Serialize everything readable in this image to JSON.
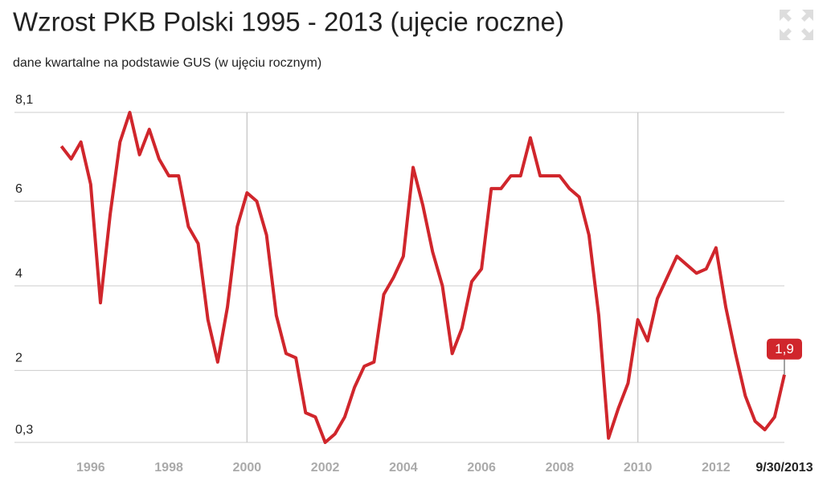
{
  "chart_data": {
    "type": "line",
    "title": "Wzrost PKB Polski 1995 - 2013 (ujęcie roczne)",
    "subtitle": "dane kwartalne na podstawie GUS (w ujęciu rocznym)",
    "color": "#d0262c",
    "x": [
      1995.25,
      1995.5,
      1995.75,
      1996,
      1996.25,
      1996.5,
      1996.75,
      1997,
      1997.25,
      1997.5,
      1997.75,
      1998,
      1998.25,
      1998.5,
      1998.75,
      1999,
      1999.25,
      1999.5,
      1999.75,
      2000,
      2000.25,
      2000.5,
      2000.75,
      2001,
      2001.25,
      2001.5,
      2001.75,
      2002,
      2002.25,
      2002.5,
      2002.75,
      2003,
      2003.25,
      2003.5,
      2003.75,
      2004,
      2004.25,
      2004.5,
      2004.75,
      2005,
      2005.25,
      2005.5,
      2005.75,
      2006,
      2006.25,
      2006.5,
      2006.75,
      2007,
      2007.25,
      2007.5,
      2007.75,
      2008,
      2008.25,
      2008.5,
      2008.75,
      2009,
      2009.25,
      2009.5,
      2009.75,
      2010,
      2010.25,
      2010.5,
      2010.75,
      2011,
      2011.25,
      2011.5,
      2011.75,
      2012,
      2012.25,
      2012.5,
      2012.75,
      2013,
      2013.25,
      2013.5,
      2013.75
    ],
    "values": [
      7.3,
      7.0,
      7.4,
      6.4,
      3.6,
      5.7,
      7.4,
      8.1,
      7.1,
      7.7,
      7.0,
      6.6,
      6.6,
      5.4,
      5.0,
      3.2,
      2.2,
      3.5,
      5.4,
      6.2,
      6.0,
      5.2,
      3.3,
      2.4,
      2.3,
      1.0,
      0.9,
      0.3,
      0.5,
      0.9,
      1.6,
      2.1,
      2.2,
      3.8,
      4.2,
      4.7,
      6.8,
      5.9,
      4.8,
      4.0,
      2.4,
      3.0,
      4.1,
      4.4,
      6.3,
      6.3,
      6.6,
      6.6,
      7.5,
      6.6,
      6.6,
      6.6,
      6.3,
      6.1,
      5.2,
      3.3,
      0.4,
      1.1,
      1.7,
      3.2,
      2.7,
      3.7,
      4.2,
      4.7,
      4.5,
      4.3,
      4.4,
      4.9,
      3.5,
      2.4,
      1.4,
      0.8,
      0.6,
      0.9,
      1.9
    ],
    "value_labels": [
      null,
      null,
      null,
      null,
      null,
      null,
      null,
      null,
      null,
      null,
      null,
      null,
      null,
      null,
      null,
      null,
      null,
      null,
      null,
      null,
      null,
      null,
      null,
      null,
      null,
      null,
      null,
      null,
      null,
      null,
      null,
      null,
      null,
      null,
      null,
      null,
      null,
      null,
      null,
      null,
      null,
      null,
      null,
      null,
      null,
      null,
      null,
      null,
      null,
      null,
      null,
      null,
      null,
      null,
      null,
      null,
      null,
      null,
      null,
      null,
      null,
      null,
      null,
      null,
      null,
      null,
      null,
      null,
      null,
      null,
      null,
      null,
      null,
      null,
      "1,9"
    ],
    "xlim": [
      1994.05,
      2013.75
    ],
    "xticks": [
      1996,
      1998,
      2000,
      2002,
      2004,
      2006,
      2008,
      2010,
      2012
    ],
    "x_highlight": {
      "value": 2013.75,
      "label": "9/30/2013"
    },
    "ylim": [
      0.3,
      8.1
    ],
    "yticks": [
      {
        "value": 0.3,
        "label": "0,3"
      },
      2,
      4,
      6,
      {
        "value": 8.1,
        "label": "8,1"
      }
    ],
    "grid": true
  }
}
